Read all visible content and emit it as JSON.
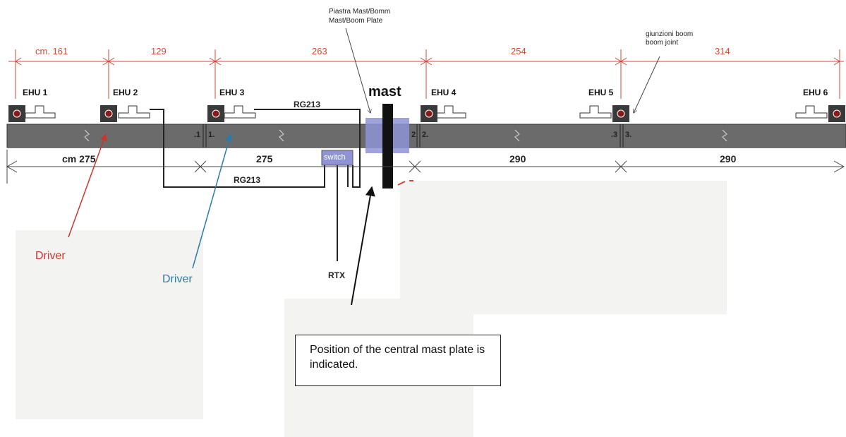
{
  "top_dimensions": {
    "d1": "cm.  161",
    "d2": "129",
    "d3": "263",
    "d4": "254",
    "d5": "314"
  },
  "ehu_labels": [
    "EHU 1",
    "EHU 2",
    "EHU 3",
    "EHU 4",
    "EHU 5",
    "EHU 6"
  ],
  "mast_label": "mast",
  "plate_label_it": "Piastra Mast/Bomm",
  "plate_label_en": "Mast/Boom Plate",
  "joint_label_it": "giunzioni boom",
  "joint_label_en": "boom joint",
  "cable_labels": {
    "upper": "RG213",
    "lower": "RG213"
  },
  "switch_label": "switch",
  "rtx_label": "RTX",
  "segment_marks": [
    ".1",
    "1.",
    "2",
    "2.",
    ".3",
    "3."
  ],
  "bottom_dimensions": {
    "d1": "cm 275",
    "d2": "275",
    "d3": "290",
    "d4": "290"
  },
  "driver_labels": {
    "red": "Driver",
    "blue": "Driver"
  },
  "callout_text": "Position of the central mast plate is indicated.",
  "colors": {
    "dimension_red": "#d04a36",
    "driver_red": "#c8372d",
    "driver_blue": "#2a7ca8",
    "boom_gray": "#6b6b6b",
    "plate_blue": "#8e93d6",
    "panel_gray": "#f3f3f1"
  }
}
